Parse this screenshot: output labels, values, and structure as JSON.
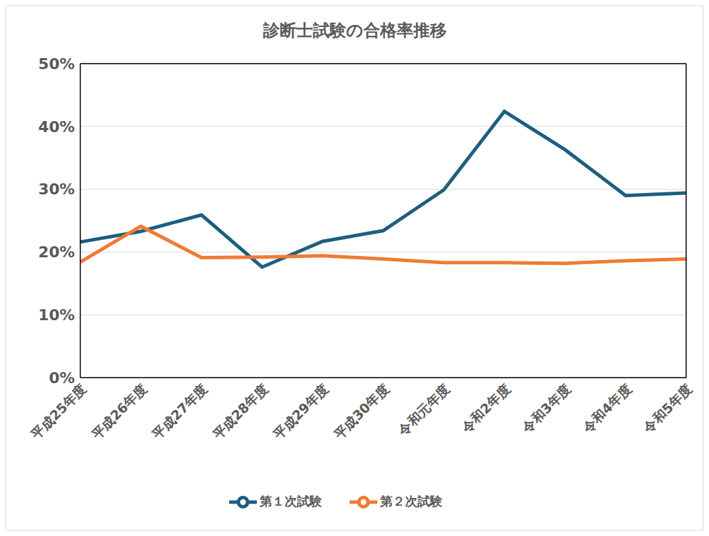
{
  "chart_data": {
    "type": "line",
    "title": "診断士試験の合格率推移",
    "categories": [
      "平成25年度",
      "平成26年度",
      "平成27年度",
      "平成28年度",
      "平成29年度",
      "平成30年度",
      "令和元年度",
      "令和2年度",
      "令和3年度",
      "令和4年度",
      "令和5年度"
    ],
    "series": [
      {
        "name": "第１次試験",
        "color": "#1d5e80",
        "values": [
          21.6,
          23.3,
          25.9,
          17.6,
          21.7,
          23.4,
          29.9,
          42.4,
          36.3,
          29.0,
          29.4
        ]
      },
      {
        "name": "第２次試験",
        "color": "#ef7b34",
        "values": [
          18.4,
          24.1,
          19.1,
          19.2,
          19.4,
          18.9,
          18.3,
          18.3,
          18.2,
          18.6,
          18.9
        ]
      }
    ],
    "ylim": [
      0,
      50
    ],
    "yticks": [
      {
        "value": 0,
        "label": "0%"
      },
      {
        "value": 10,
        "label": "10%"
      },
      {
        "value": 20,
        "label": "20%"
      },
      {
        "value": 30,
        "label": "30%"
      },
      {
        "value": 40,
        "label": "40%"
      },
      {
        "value": 50,
        "label": "50%"
      }
    ],
    "grid": true,
    "legend": "bottom"
  }
}
